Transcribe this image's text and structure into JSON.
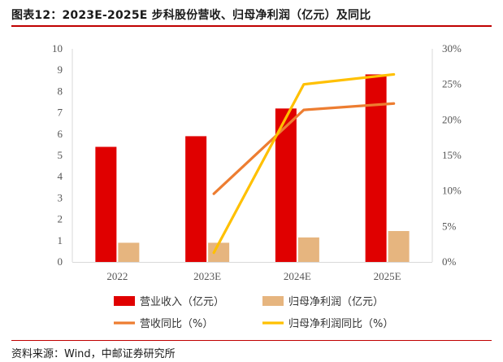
{
  "title": "图表12：2023E-2025E 步科股份营收、归母净利润（亿元）及同比",
  "source": "资料来源：Wind，中邮证券研究所",
  "chart_data": {
    "type": "bar",
    "categories": [
      "2022",
      "2023E",
      "2024E",
      "2025E"
    ],
    "series": [
      {
        "name": "营业收入（亿元）",
        "kind": "bar",
        "axis": "left",
        "color": "#e00000",
        "values": [
          5.4,
          5.9,
          7.2,
          8.8
        ]
      },
      {
        "name": "归母净利润（亿元）",
        "kind": "bar",
        "axis": "left",
        "color": "#e6b57f",
        "values": [
          0.9,
          0.9,
          1.15,
          1.45
        ]
      },
      {
        "name": "营收同比（%）",
        "kind": "line",
        "axis": "right",
        "color": "#ed7d31",
        "values": [
          null,
          9.6,
          21.4,
          22.3
        ]
      },
      {
        "name": "归母净利润同比（%）",
        "kind": "line",
        "axis": "right",
        "color": "#ffc000",
        "values": [
          null,
          1.3,
          25.0,
          26.4
        ]
      }
    ],
    "ylim_left": [
      0,
      10
    ],
    "yticks_left": [
      "0",
      "1",
      "2",
      "3",
      "4",
      "5",
      "6",
      "7",
      "8",
      "9",
      "10"
    ],
    "ylim_right": [
      0,
      30
    ],
    "yticks_right": [
      "0%",
      "5%",
      "10%",
      "15%",
      "20%",
      "25%",
      "30%"
    ],
    "grid": false,
    "legend_position": "bottom"
  }
}
